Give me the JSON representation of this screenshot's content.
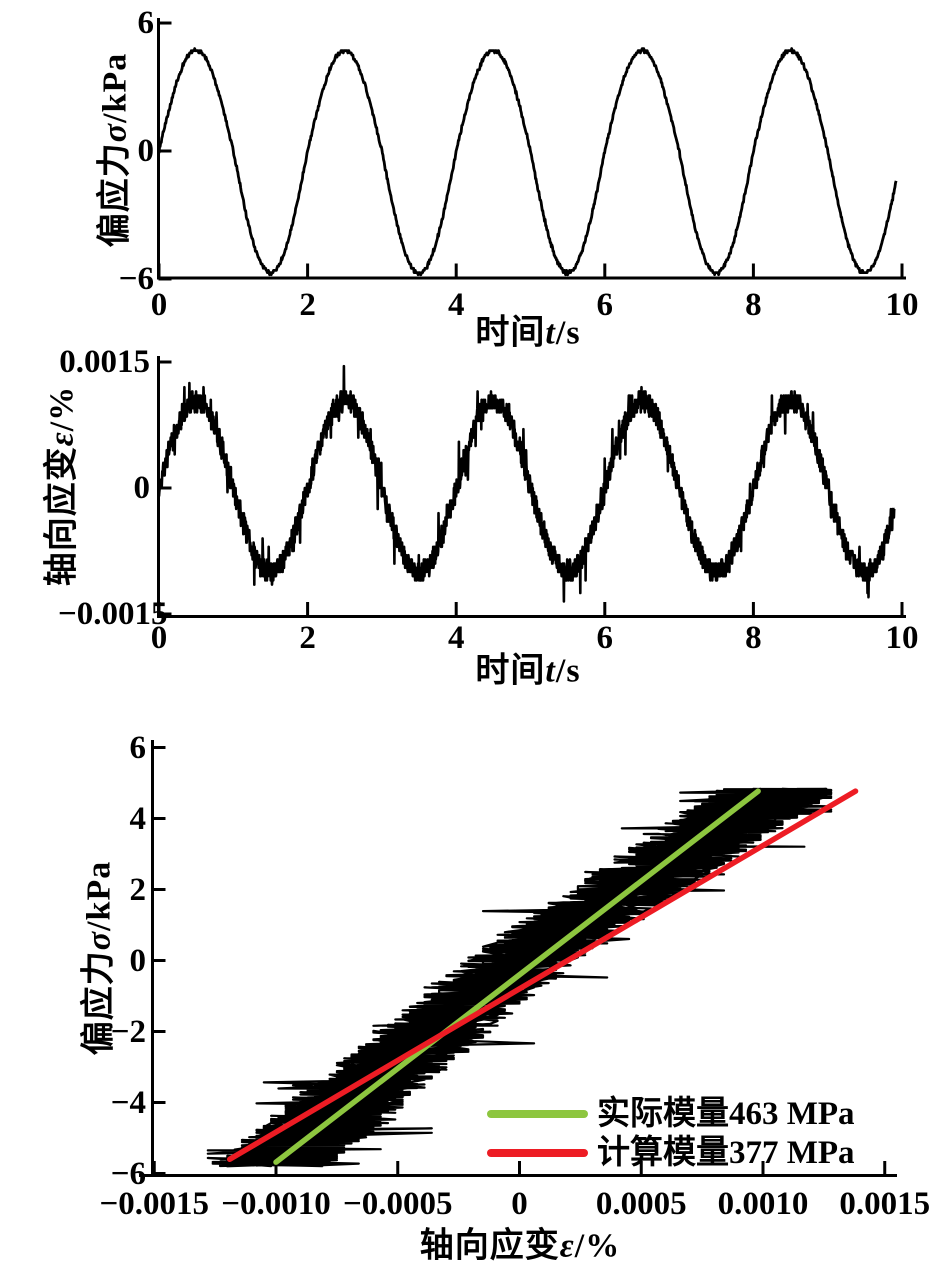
{
  "page": {
    "background": "#ffffff",
    "text_color": "#000000"
  },
  "chart_data": [
    {
      "name": "stress-vs-time",
      "type": "line",
      "xlabel": {
        "prefix": "时间",
        "variable": "t",
        "suffix": "/s"
      },
      "ylabel": {
        "prefix": "偏应力",
        "variable": "σ",
        "suffix": "/kPa"
      },
      "xlim": [
        0,
        10.05
      ],
      "ylim": [
        -6,
        6
      ],
      "xticks": {
        "values": [
          0,
          2,
          4,
          6,
          8,
          10
        ],
        "labels": [
          "0",
          "2",
          "4",
          "6",
          "8",
          "10"
        ]
      },
      "yticks": {
        "values": [
          6,
          0,
          -6
        ],
        "labels": [
          "6",
          "0",
          "−6"
        ]
      },
      "grid": false,
      "series": [
        {
          "name": "deviatoric-stress-signal",
          "color": "#000000",
          "line_width": 2.8,
          "signal": {
            "kind": "noisy-sine",
            "period_s": 2,
            "t_start": 0,
            "t_end": 9.92,
            "amplitude_positive": 4.72,
            "amplitude_negative": 5.72,
            "noise": 0.07,
            "quantize": 0.1,
            "samples": 1300
          }
        }
      ]
    },
    {
      "name": "strain-vs-time",
      "type": "line",
      "xlabel": {
        "prefix": "时间",
        "variable": "t",
        "suffix": "/s"
      },
      "ylabel": {
        "prefix": "轴向应变",
        "variable": "ε",
        "suffix": "/%"
      },
      "xlim": [
        0,
        10.05
      ],
      "ylim": [
        -0.0016,
        0.00155
      ],
      "xticks": {
        "values": [
          0,
          2,
          4,
          6,
          8,
          10
        ],
        "labels": [
          "0",
          "2",
          "4",
          "6",
          "8",
          "10"
        ]
      },
      "yticks": {
        "values": [
          0.0015,
          0,
          -0.0015
        ],
        "labels": [
          "0.0015",
          "0",
          "−0.0015"
        ]
      },
      "grid": false,
      "series": [
        {
          "name": "axial-strain-signal",
          "color": "#000000",
          "line_width": 2.6,
          "signal": {
            "kind": "noisy-sine",
            "period_s": 2,
            "t_start": 0,
            "t_end": 9.9,
            "amplitude_positive": 0.00104,
            "amplitude_negative": 0.001,
            "noise": 0.00013,
            "spike_probability": 0.05,
            "spike": 0.00035,
            "quantize": 5e-05,
            "clip": 0.00146,
            "samples": 2200
          }
        }
      ]
    },
    {
      "name": "stress-vs-strain-hysteresis",
      "type": "line",
      "xlabel": {
        "prefix": "轴向应变",
        "variable": "ε",
        "suffix": "/%"
      },
      "ylabel": {
        "prefix": "偏应力",
        "variable": "σ",
        "suffix": "/kPa"
      },
      "xlim": [
        -0.00155,
        0.00155
      ],
      "ylim": [
        -6.2,
        6.3
      ],
      "xticks": {
        "values": [
          -0.0015,
          -0.001,
          -0.0005,
          0,
          0.0005,
          0.001,
          0.0015
        ],
        "labels": [
          "−0.0015",
          "−0.0010",
          "−0.0005",
          "0",
          "0.0005",
          "0.0010",
          "0.0015"
        ]
      },
      "yticks": {
        "values": [
          6,
          4,
          2,
          0,
          -2,
          -4,
          -6
        ],
        "labels": [
          "6",
          "4",
          "2",
          "0",
          "−2",
          "−4",
          "−6"
        ]
      },
      "grid": false,
      "series": [
        {
          "name": "hysteresis-loops",
          "color": "#000000",
          "line_width": 2.2,
          "signal": {
            "kind": "xy-noisy-sine",
            "period_s": 2,
            "t_start": 0,
            "t_end": 9.9,
            "samples": 3600,
            "x": {
              "period_s": 2,
              "amplitude_positive": 0.00106,
              "amplitude_negative": 0.00101,
              "noise": 0.00024,
              "spike_probability": 0.04,
              "spike": 0.0003,
              "quantize": 3e-05,
              "clip": 0.00128
            },
            "y": {
              "period_s": 2,
              "amplitude_positive": 4.78,
              "amplitude_negative": 5.74,
              "noise": 0.06
            }
          }
        },
        {
          "name": "actual-modulus-line",
          "label": "实际模量463 MPa",
          "modulus_MPa": 463,
          "color": "#8DC63F",
          "line_width": 5.5,
          "endpoints": [
            [
              -0.001,
              -5.68
            ],
            [
              0.00098,
              4.77
            ]
          ]
        },
        {
          "name": "calculated-modulus-line",
          "label": "计算模量377 MPa",
          "modulus_MPa": 377,
          "color": "#ED1C24",
          "line_width": 5.5,
          "endpoints": [
            [
              -0.00119,
              -5.6
            ],
            [
              0.00138,
              4.77
            ]
          ]
        }
      ],
      "legend": {
        "position": "inside-bottom-right",
        "items": [
          {
            "swatch_color": "#8DC63F",
            "label": "实际模量463 MPa"
          },
          {
            "swatch_color": "#ED1C24",
            "label": "计算模量377 MPa"
          }
        ]
      }
    }
  ]
}
